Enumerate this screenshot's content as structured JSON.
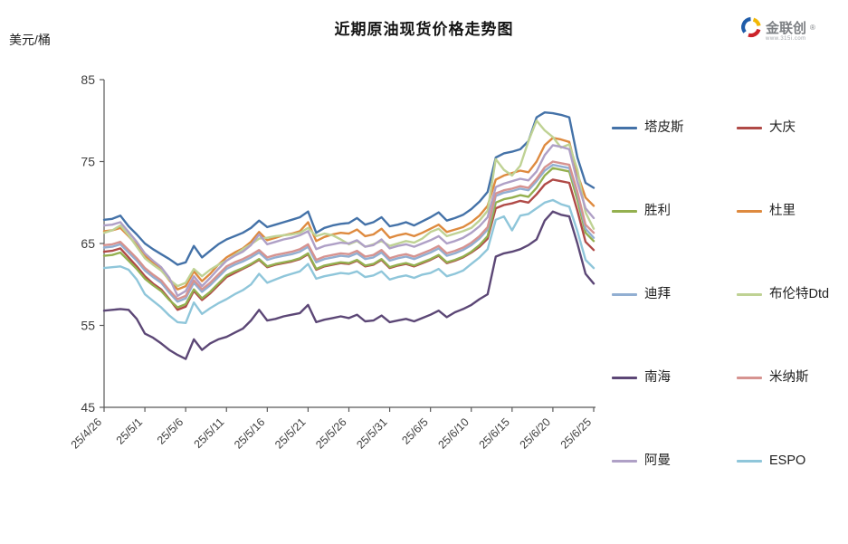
{
  "page": {
    "title": "近期原油现货价格走势图",
    "y_unit": "美元/桶"
  },
  "logo": {
    "name": "金联创",
    "reg_mark": "®",
    "url_text": "www.315i.com",
    "colors": {
      "blue": "#1f5ca9",
      "yellow": "#f2b705",
      "red": "#cc2229"
    }
  },
  "chart_data": {
    "type": "line",
    "title": "近期原油现货价格走势图",
    "ylabel": "美元/桶",
    "xlabel": "",
    "ylim": [
      45,
      85
    ],
    "y_ticks": [
      45,
      55,
      65,
      75,
      85
    ],
    "grid": false,
    "legend_position": "right",
    "axis_color": "#595959",
    "tick_label_color": "#404040",
    "x_tick_labels": [
      "25/4/26",
      "25/5/1",
      "25/5/6",
      "25/5/11",
      "25/5/16",
      "25/5/21",
      "25/5/26",
      "25/5/31",
      "25/6/5",
      "25/6/10",
      "25/6/15",
      "25/6/20",
      "25/6/25"
    ],
    "x": [
      "25/4/26",
      "25/4/27",
      "25/4/28",
      "25/4/29",
      "25/4/30",
      "25/5/1",
      "25/5/2",
      "25/5/3",
      "25/5/4",
      "25/5/5",
      "25/5/6",
      "25/5/7",
      "25/5/8",
      "25/5/9",
      "25/5/10",
      "25/5/11",
      "25/5/12",
      "25/5/13",
      "25/5/14",
      "25/5/15",
      "25/5/16",
      "25/5/17",
      "25/5/18",
      "25/5/19",
      "25/5/20",
      "25/5/21",
      "25/5/22",
      "25/5/23",
      "25/5/24",
      "25/5/25",
      "25/5/26",
      "25/5/27",
      "25/5/28",
      "25/5/29",
      "25/5/30",
      "25/5/31",
      "25/6/1",
      "25/6/2",
      "25/6/3",
      "25/6/4",
      "25/6/5",
      "25/6/6",
      "25/6/7",
      "25/6/8",
      "25/6/9",
      "25/6/10",
      "25/6/11",
      "25/6/12",
      "25/6/13",
      "25/6/14",
      "25/6/15",
      "25/6/16",
      "25/6/17",
      "25/6/18",
      "25/6/19",
      "25/6/20",
      "25/6/21",
      "25/6/22",
      "25/6/23",
      "25/6/24",
      "25/6/25"
    ],
    "series": [
      {
        "name": "塔皮斯",
        "color": "#4472a8",
        "values": [
          67.9,
          68.0,
          68.4,
          67.1,
          66.1,
          65.0,
          64.3,
          63.7,
          63.1,
          62.4,
          62.7,
          64.7,
          63.3,
          64.1,
          64.9,
          65.5,
          65.9,
          66.3,
          66.9,
          67.8,
          67.0,
          67.3,
          67.6,
          67.9,
          68.2,
          68.9,
          66.3,
          66.9,
          67.2,
          67.4,
          67.5,
          68.1,
          67.3,
          67.6,
          68.2,
          67.1,
          67.3,
          67.6,
          67.2,
          67.7,
          68.2,
          68.8,
          67.8,
          68.1,
          68.5,
          69.2,
          70.1,
          71.3,
          75.5,
          76.0,
          76.2,
          76.5,
          77.5,
          80.4,
          81.0,
          80.9,
          80.7,
          80.4,
          75.5,
          72.4,
          71.8
        ]
      },
      {
        "name": "大庆",
        "color": "#b04a47",
        "values": [
          64.0,
          64.1,
          64.4,
          63.3,
          62.2,
          61.0,
          60.1,
          59.4,
          58.2,
          56.9,
          57.3,
          59.2,
          58.1,
          58.9,
          59.9,
          60.9,
          61.4,
          61.9,
          62.4,
          63.0,
          62.1,
          62.4,
          62.6,
          62.8,
          63.1,
          63.7,
          61.8,
          62.2,
          62.4,
          62.6,
          62.5,
          62.9,
          62.2,
          62.4,
          63.0,
          62.0,
          62.3,
          62.5,
          62.2,
          62.6,
          63.0,
          63.5,
          62.6,
          62.9,
          63.3,
          63.9,
          64.6,
          65.6,
          69.3,
          69.7,
          69.9,
          70.2,
          70.0,
          71.0,
          72.2,
          72.8,
          72.6,
          72.4,
          69.0,
          65.2,
          64.2
        ]
      },
      {
        "name": "胜利",
        "color": "#94b04f",
        "values": [
          63.5,
          63.6,
          63.9,
          62.9,
          61.9,
          60.7,
          59.9,
          59.2,
          58.1,
          57.2,
          57.6,
          59.4,
          58.3,
          59.1,
          60.1,
          61.1,
          61.6,
          62.0,
          62.5,
          63.1,
          62.2,
          62.5,
          62.7,
          62.9,
          63.2,
          63.8,
          61.9,
          62.3,
          62.5,
          62.7,
          62.6,
          63.0,
          62.3,
          62.5,
          63.1,
          62.1,
          62.4,
          62.6,
          62.3,
          62.7,
          63.1,
          63.6,
          62.7,
          63.0,
          63.4,
          64.0,
          64.8,
          65.9,
          70.0,
          70.4,
          70.6,
          70.9,
          70.7,
          71.8,
          73.3,
          74.2,
          74.0,
          73.8,
          70.3,
          66.3,
          65.3
        ]
      },
      {
        "name": "杜里",
        "color": "#de8a3f",
        "values": [
          66.5,
          66.6,
          66.9,
          65.9,
          64.8,
          63.5,
          62.6,
          61.8,
          60.5,
          59.4,
          59.8,
          61.6,
          60.4,
          61.3,
          62.4,
          63.3,
          63.9,
          64.4,
          65.2,
          66.4,
          65.4,
          65.7,
          66.0,
          66.2,
          66.5,
          67.6,
          65.3,
          65.8,
          66.1,
          66.3,
          66.2,
          66.7,
          65.9,
          66.1,
          66.8,
          65.7,
          66.0,
          66.2,
          65.9,
          66.3,
          66.8,
          67.3,
          66.4,
          66.7,
          67.0,
          67.6,
          68.4,
          69.6,
          72.8,
          73.3,
          73.6,
          73.9,
          73.7,
          75.0,
          77.0,
          77.9,
          77.7,
          77.4,
          73.5,
          70.6,
          69.6
        ]
      },
      {
        "name": "迪拜",
        "color": "#92afd2",
        "values": [
          64.5,
          64.6,
          64.9,
          63.9,
          62.9,
          61.7,
          60.9,
          60.2,
          59.0,
          57.9,
          58.3,
          60.2,
          59.1,
          59.9,
          60.9,
          61.9,
          62.4,
          62.8,
          63.3,
          63.9,
          63.0,
          63.3,
          63.5,
          63.7,
          64.0,
          64.6,
          62.7,
          63.1,
          63.3,
          63.5,
          63.4,
          63.8,
          63.1,
          63.3,
          63.9,
          62.9,
          63.2,
          63.4,
          63.1,
          63.5,
          63.9,
          64.4,
          63.5,
          63.8,
          64.2,
          64.8,
          65.6,
          66.7,
          70.8,
          71.2,
          71.4,
          71.7,
          71.5,
          72.6,
          73.9,
          74.6,
          74.4,
          74.2,
          71.0,
          66.8,
          65.7
        ]
      },
      {
        "name": "布伦特Dtd",
        "color": "#bfd294",
        "values": [
          66.3,
          66.6,
          67.2,
          66.0,
          64.6,
          63.2,
          62.4,
          61.7,
          60.6,
          59.8,
          60.2,
          61.9,
          61.0,
          61.8,
          62.4,
          62.9,
          63.6,
          64.3,
          64.9,
          65.6,
          65.7,
          65.9,
          66.0,
          66.1,
          66.3,
          66.9,
          65.9,
          66.2,
          66.0,
          65.5,
          64.9,
          65.3,
          64.6,
          64.9,
          65.3,
          64.7,
          65.0,
          65.3,
          65.1,
          65.6,
          66.4,
          66.8,
          65.9,
          66.2,
          66.5,
          66.9,
          67.8,
          69.0,
          75.3,
          74.0,
          73.3,
          74.5,
          77.5,
          80.0,
          78.8,
          78.0,
          76.7,
          77.1,
          74.0,
          68.8,
          66.8
        ]
      },
      {
        "name": "南海",
        "color": "#5c4776",
        "values": [
          56.8,
          56.9,
          57.0,
          56.9,
          55.8,
          54.0,
          53.5,
          52.8,
          52.0,
          51.4,
          50.9,
          53.3,
          52.0,
          52.8,
          53.3,
          53.6,
          54.1,
          54.6,
          55.6,
          56.9,
          55.6,
          55.8,
          56.1,
          56.3,
          56.5,
          57.5,
          55.4,
          55.7,
          55.9,
          56.1,
          55.9,
          56.3,
          55.5,
          55.6,
          56.2,
          55.4,
          55.6,
          55.8,
          55.5,
          55.9,
          56.3,
          56.8,
          56.0,
          56.6,
          57.0,
          57.5,
          58.2,
          58.8,
          63.4,
          63.8,
          64.0,
          64.3,
          64.8,
          65.5,
          67.8,
          68.9,
          68.5,
          68.3,
          65.0,
          61.3,
          60.1
        ]
      },
      {
        "name": "米纳斯",
        "color": "#d69390",
        "values": [
          64.8,
          64.9,
          65.2,
          64.2,
          63.2,
          62.0,
          61.2,
          60.5,
          59.3,
          58.2,
          58.6,
          60.5,
          59.4,
          60.2,
          61.2,
          62.2,
          62.7,
          63.1,
          63.6,
          64.2,
          63.3,
          63.6,
          63.8,
          64.0,
          64.3,
          64.9,
          63.0,
          63.4,
          63.6,
          63.8,
          63.7,
          64.1,
          63.4,
          63.6,
          64.2,
          63.2,
          63.5,
          63.7,
          63.4,
          63.8,
          64.2,
          64.7,
          63.8,
          64.1,
          64.5,
          65.1,
          65.9,
          67.0,
          71.1,
          71.5,
          71.7,
          72.0,
          71.8,
          72.9,
          74.3,
          75.0,
          74.8,
          74.6,
          71.3,
          67.3,
          66.3
        ]
      },
      {
        "name": "阿曼",
        "color": "#afa0c6",
        "values": [
          67.2,
          67.3,
          67.6,
          66.4,
          65.2,
          63.8,
          62.9,
          62.1,
          60.8,
          58.6,
          59.2,
          61.0,
          59.8,
          60.8,
          61.9,
          62.9,
          63.5,
          64.0,
          64.8,
          66.1,
          64.9,
          65.2,
          65.5,
          65.7,
          66.0,
          66.5,
          64.3,
          64.7,
          64.9,
          65.1,
          65.0,
          65.4,
          64.6,
          64.8,
          65.5,
          64.4,
          64.7,
          64.9,
          64.6,
          65.0,
          65.4,
          65.9,
          65.0,
          65.3,
          65.7,
          66.3,
          67.1,
          68.2,
          71.9,
          72.3,
          72.6,
          72.9,
          72.7,
          73.8,
          75.8,
          77.0,
          76.8,
          76.5,
          72.5,
          69.3,
          68.1
        ]
      },
      {
        "name": "ESPO",
        "color": "#8fc6da",
        "values": [
          62.0,
          62.1,
          62.2,
          61.8,
          60.6,
          58.8,
          58.0,
          57.2,
          56.2,
          55.4,
          55.3,
          57.8,
          56.4,
          57.1,
          57.7,
          58.2,
          58.8,
          59.3,
          60.0,
          61.3,
          60.2,
          60.6,
          61.0,
          61.3,
          61.6,
          62.5,
          60.7,
          61.0,
          61.2,
          61.4,
          61.3,
          61.6,
          60.9,
          61.1,
          61.6,
          60.6,
          60.9,
          61.1,
          60.8,
          61.2,
          61.4,
          61.9,
          61.0,
          61.3,
          61.7,
          62.5,
          63.3,
          64.3,
          67.9,
          68.3,
          66.6,
          68.4,
          68.6,
          69.3,
          70.0,
          70.3,
          69.8,
          69.5,
          66.5,
          63.0,
          62.0
        ]
      }
    ]
  }
}
